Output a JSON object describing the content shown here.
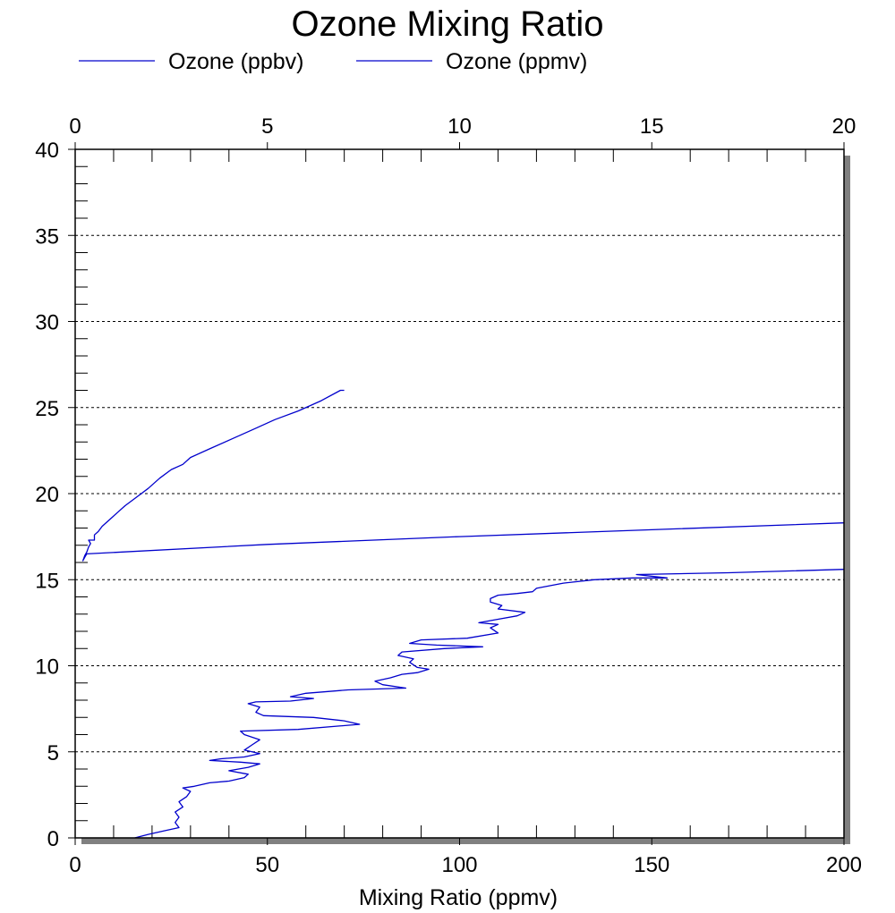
{
  "chart_data": {
    "type": "line",
    "title": "Ozone Mixing Ratio",
    "xlabel": "Mixing Ratio (ppmv)",
    "ylabel": "",
    "legend_position": "top-left",
    "grid": "horizontal dotted",
    "x_bottom": {
      "lim": [
        0,
        200
      ],
      "ticks": [
        "0",
        "50",
        "100",
        "150",
        "200"
      ],
      "tick_values": [
        0,
        50,
        100,
        150,
        200
      ]
    },
    "x_top": {
      "lim": [
        0,
        20
      ],
      "ticks": [
        "0",
        "5",
        "10",
        "15",
        "20"
      ],
      "tick_values": [
        0,
        5,
        10,
        15,
        20
      ]
    },
    "y": {
      "lim": [
        0,
        40
      ],
      "ticks": [
        "0",
        "5",
        "10",
        "15",
        "20",
        "25",
        "30",
        "35",
        "40"
      ],
      "tick_values": [
        0,
        5,
        10,
        15,
        20,
        25,
        30,
        35,
        40
      ]
    },
    "series": [
      {
        "name": "Ozone (ppbv)",
        "axis": "bottom",
        "color": "#0000cc",
        "points": [
          [
            15.5,
            0
          ],
          [
            19,
            0.2
          ],
          [
            23,
            0.4
          ],
          [
            27,
            0.6
          ],
          [
            26,
            0.9
          ],
          [
            27,
            1.2
          ],
          [
            26,
            1.5
          ],
          [
            28,
            1.8
          ],
          [
            27,
            2.1
          ],
          [
            29,
            2.4
          ],
          [
            30,
            2.7
          ],
          [
            28,
            2.9
          ],
          [
            31,
            3.0
          ],
          [
            35,
            3.2
          ],
          [
            40,
            3.3
          ],
          [
            44,
            3.5
          ],
          [
            45,
            3.7
          ],
          [
            40,
            3.9
          ],
          [
            45,
            4.1
          ],
          [
            48,
            4.3
          ],
          [
            43,
            4.4
          ],
          [
            35,
            4.5
          ],
          [
            38,
            4.6
          ],
          [
            44,
            4.7
          ],
          [
            48,
            4.9
          ],
          [
            44,
            5.1
          ],
          [
            46,
            5.4
          ],
          [
            48,
            5.7
          ],
          [
            44,
            6.0
          ],
          [
            43,
            6.2
          ],
          [
            58,
            6.3
          ],
          [
            74,
            6.6
          ],
          [
            70,
            6.8
          ],
          [
            62,
            7.0
          ],
          [
            49,
            7.1
          ],
          [
            47,
            7.3
          ],
          [
            48,
            7.6
          ],
          [
            45,
            7.8
          ],
          [
            47,
            7.9
          ],
          [
            56,
            7.95
          ],
          [
            62,
            8.1
          ],
          [
            56,
            8.2
          ],
          [
            60,
            8.4
          ],
          [
            71,
            8.6
          ],
          [
            86,
            8.7
          ],
          [
            80,
            8.9
          ],
          [
            78,
            9.1
          ],
          [
            82,
            9.3
          ],
          [
            85,
            9.5
          ],
          [
            89,
            9.6
          ],
          [
            92,
            9.8
          ],
          [
            89,
            9.9
          ],
          [
            87,
            10.2
          ],
          [
            88,
            10.4
          ],
          [
            84,
            10.6
          ],
          [
            85,
            10.8
          ],
          [
            96,
            11.0
          ],
          [
            106,
            11.1
          ],
          [
            94,
            11.2
          ],
          [
            87,
            11.3
          ],
          [
            90,
            11.5
          ],
          [
            102,
            11.6
          ],
          [
            110,
            11.9
          ],
          [
            108,
            12.2
          ],
          [
            110,
            12.4
          ],
          [
            105,
            12.5
          ],
          [
            110,
            12.7
          ],
          [
            115,
            12.9
          ],
          [
            117,
            13.1
          ],
          [
            110,
            13.3
          ],
          [
            111,
            13.5
          ],
          [
            108,
            13.7
          ],
          [
            108,
            13.9
          ],
          [
            110,
            14.1
          ],
          [
            115,
            14.2
          ],
          [
            119,
            14.3
          ],
          [
            120,
            14.5
          ],
          [
            127,
            14.8
          ],
          [
            135,
            15.0
          ],
          [
            145,
            15.1
          ],
          [
            154,
            15.1
          ],
          [
            146,
            15.3
          ],
          [
            170,
            15.4
          ],
          [
            200,
            15.6
          ]
        ]
      },
      {
        "name": "Ozone (ppmv)",
        "axis": "top",
        "color": "#0000cc",
        "points": [
          [
            20,
            18.3
          ],
          [
            10,
            17.5
          ],
          [
            5,
            17.05
          ],
          [
            0.3,
            16.5
          ],
          [
            0.25,
            16.3
          ],
          [
            0.2,
            16.1
          ],
          [
            0.25,
            16.4
          ],
          [
            0.3,
            16.6
          ],
          [
            0.35,
            16.9
          ],
          [
            0.4,
            17.1
          ],
          [
            0.35,
            17.3
          ],
          [
            0.5,
            17.3
          ],
          [
            0.5,
            17.6
          ],
          [
            0.6,
            17.8
          ],
          [
            0.7,
            18.1
          ],
          [
            0.9,
            18.5
          ],
          [
            1.1,
            18.9
          ],
          [
            1.3,
            19.3
          ],
          [
            1.6,
            19.8
          ],
          [
            1.9,
            20.3
          ],
          [
            2.2,
            20.9
          ],
          [
            2.5,
            21.4
          ],
          [
            2.8,
            21.7
          ],
          [
            3.0,
            22.1
          ],
          [
            3.5,
            22.6
          ],
          [
            4.0,
            23.1
          ],
          [
            4.6,
            23.7
          ],
          [
            5.2,
            24.3
          ],
          [
            5.8,
            24.8
          ],
          [
            6.4,
            25.4
          ],
          [
            6.9,
            26.0
          ],
          [
            7.0,
            26.0
          ]
        ]
      }
    ]
  }
}
